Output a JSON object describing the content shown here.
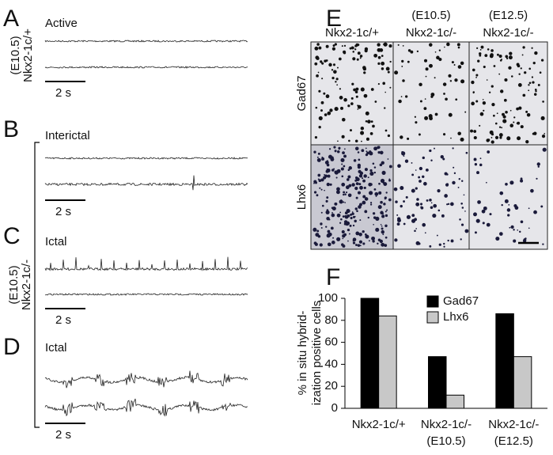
{
  "panels": {
    "A": {
      "letter": "A",
      "condition": "Active",
      "genotype": [
        "(E10.5)",
        "Nkx2-1c/+"
      ],
      "scale": "2 s"
    },
    "B": {
      "letter": "B",
      "condition": "Interictal",
      "scale": "2 s"
    },
    "C": {
      "letter": "C",
      "condition": "Ictal",
      "scale": "2 s"
    },
    "D": {
      "letter": "D",
      "condition": "Ictal",
      "scale": "2 s"
    },
    "BCD_genotype": [
      "(E10.5)",
      "Nkx2-1c/-"
    ],
    "E": {
      "letter": "E",
      "columns": [
        [
          "Nkx2-1c/+"
        ],
        [
          "(E10.5)",
          "Nkx2-1c/-"
        ],
        [
          "(E12.5)",
          "Nkx2-1c/-"
        ]
      ],
      "rows": [
        "Gad67",
        "Lhx6"
      ]
    }
  },
  "chart_data": {
    "type": "bar",
    "letter": "F",
    "ylabel": [
      "% in situ hybrid-",
      "ization positive cells"
    ],
    "categories": [
      "Nkx2-1c/+",
      "Nkx2-1c/-",
      "Nkx2-1c/-"
    ],
    "category_subtitles": [
      null,
      "(E10.5)",
      "(E12.5)"
    ],
    "series": [
      {
        "name": "Gad67",
        "color": "#000000",
        "values": [
          100,
          47,
          86
        ]
      },
      {
        "name": "Lhx6",
        "color": "#c8c8c8",
        "values": [
          84,
          12,
          47
        ]
      }
    ],
    "ylim": [
      0,
      100
    ],
    "yticks": [
      0,
      20,
      40,
      60,
      80,
      100
    ],
    "legend": "top-right"
  }
}
